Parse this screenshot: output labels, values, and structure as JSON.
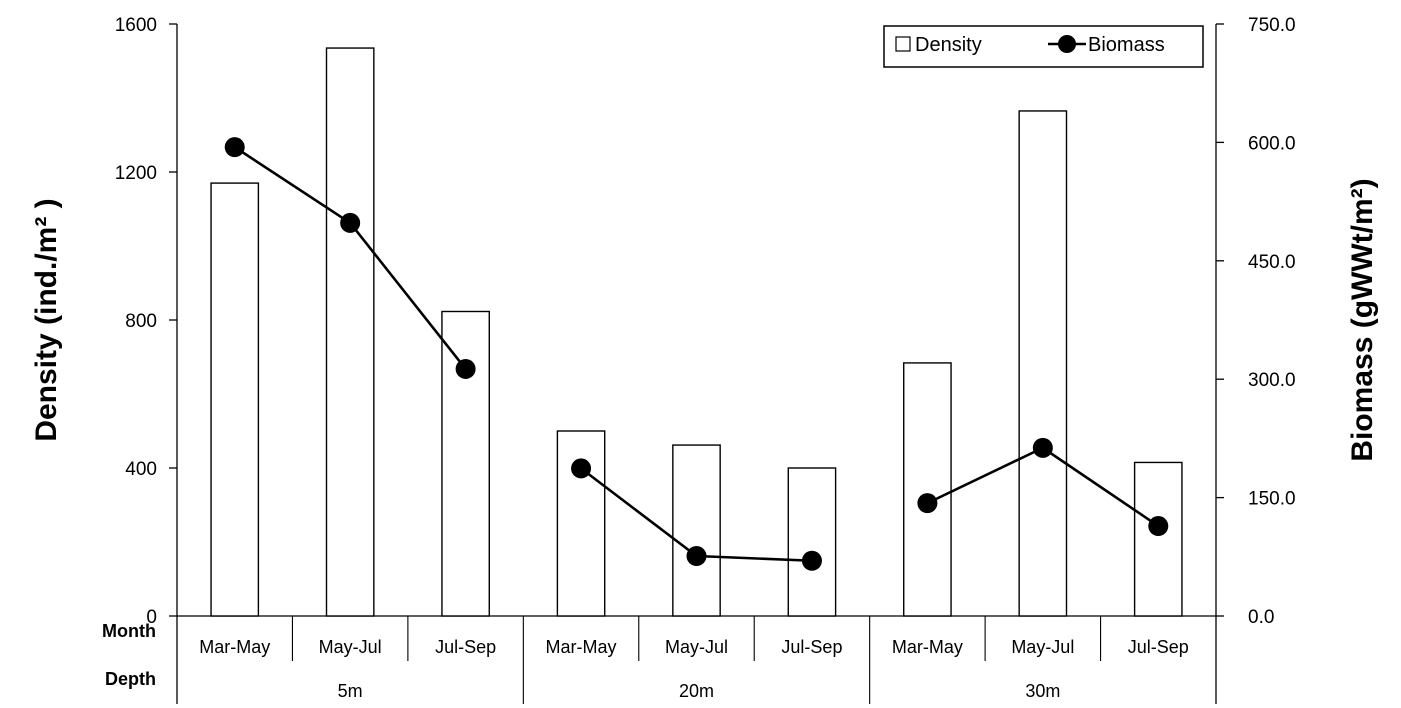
{
  "chart_data": {
    "type": "bar",
    "categories": [
      "Mar-May",
      "May-Jul",
      "Jul-Sep",
      "Mar-May",
      "May-Jul",
      "Jul-Sep",
      "Mar-May",
      "May-Jul",
      "Jul-Sep"
    ],
    "groups": [
      "5m",
      "20m",
      "30m"
    ],
    "row_labels": [
      "Month",
      "Depth"
    ],
    "series": [
      {
        "name": "Density",
        "kind": "bar",
        "axis": "left",
        "values": [
          1170,
          1535,
          823,
          500,
          462,
          400,
          684,
          1365,
          415
        ]
      },
      {
        "name": "Biomass",
        "kind": "line",
        "axis": "right",
        "values": [
          594,
          498,
          313,
          187,
          76,
          70,
          143,
          213,
          114
        ]
      }
    ],
    "ylabel_left": "Density (ind./m²  )",
    "ylabel_right": "Biomass  (gWWt/m²)",
    "ylim_left": [
      0,
      1600
    ],
    "ylim_right": [
      0,
      750
    ],
    "yticks_left": [
      "0",
      "400",
      "800",
      "1200",
      "1600"
    ],
    "yticks_right": [
      "0.0",
      "150.0",
      "300.0",
      "450.0",
      "600.0",
      "750.0"
    ],
    "legend": {
      "position": "top-right",
      "entries": [
        "Density",
        "Biomass"
      ]
    },
    "grid": false
  }
}
